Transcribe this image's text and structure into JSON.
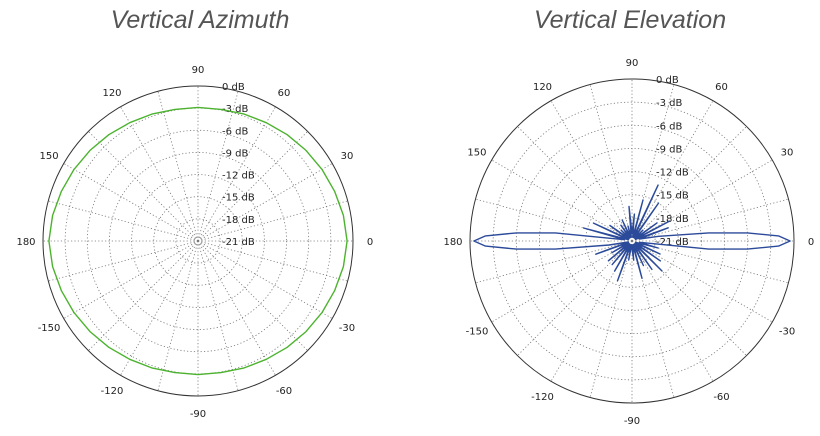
{
  "charts": [
    {
      "title": "Vertical Azimuth"
    },
    {
      "title": "Vertical Elevation"
    }
  ],
  "chart_data": [
    {
      "type": "polar",
      "title": "Vertical Azimuth",
      "angle_labels": [
        "0",
        "30",
        "60",
        "90",
        "120",
        "150",
        "180",
        "-150",
        "-120",
        "-90",
        "-60",
        "-30"
      ],
      "radial_labels": [
        "0 dB",
        "-3 dB",
        "-6 dB",
        "-9 dB",
        "-12 dB",
        "-15 dB",
        "-18 dB",
        "-21 dB"
      ],
      "rlim": [
        -21,
        0
      ],
      "grid": true,
      "series": [
        {
          "color": "#4cb32e",
          "theta": [
            0,
            10,
            20,
            30,
            40,
            50,
            60,
            70,
            80,
            90,
            100,
            110,
            120,
            130,
            140,
            150,
            160,
            170,
            180,
            190,
            200,
            210,
            220,
            230,
            240,
            250,
            260,
            270,
            280,
            290,
            300,
            310,
            320,
            330,
            340,
            350
          ],
          "r_db": [
            -0.8,
            -1.0,
            -1.3,
            -1.6,
            -1.9,
            -2.2,
            -2.5,
            -2.7,
            -2.9,
            -2.9,
            -2.9,
            -2.7,
            -2.5,
            -2.2,
            -1.9,
            -1.6,
            -1.3,
            -1.0,
            -0.8,
            -1.0,
            -1.3,
            -1.6,
            -1.9,
            -2.2,
            -2.5,
            -2.7,
            -2.9,
            -2.9,
            -2.9,
            -2.7,
            -2.5,
            -2.2,
            -1.9,
            -1.6,
            -1.3,
            -1.0
          ]
        }
      ]
    },
    {
      "type": "polar",
      "title": "Vertical Elevation",
      "angle_labels": [
        "0",
        "30",
        "60",
        "90",
        "120",
        "150",
        "180",
        "-150",
        "-120",
        "-90",
        "-60",
        "-30"
      ],
      "radial_labels": [
        "0 dB",
        "-3 dB",
        "-6 dB",
        "-9 dB",
        "-12 dB",
        "-15 dB",
        "-18 dB",
        "-21 dB"
      ],
      "rlim": [
        -21,
        0
      ],
      "grid": true,
      "series": [
        {
          "color": "#2b4a9a",
          "theta": [
            0,
            2,
            4,
            6,
            10,
            15,
            20,
            25,
            28,
            32,
            36,
            40,
            45,
            50,
            55,
            60,
            65,
            70,
            75,
            80,
            85,
            90,
            95,
            100,
            105,
            110,
            115,
            120,
            125,
            130,
            135,
            140,
            145,
            150,
            155,
            160,
            165,
            170,
            174,
            176,
            178,
            180,
            182,
            184,
            186,
            190,
            195,
            200,
            205,
            210,
            215,
            220,
            225,
            230,
            235,
            240,
            245,
            250,
            255,
            260,
            265,
            270,
            275,
            280,
            285,
            290,
            295,
            300,
            305,
            310,
            315,
            320,
            325,
            330,
            335,
            340,
            345,
            350,
            354,
            356,
            358
          ],
          "r_db": [
            -0.5,
            -2.0,
            -6.0,
            -11.0,
            -17.5,
            -20.0,
            -16.0,
            -20.5,
            -15.5,
            -20.5,
            -17.0,
            -20.5,
            -19.0,
            -20.5,
            -15.0,
            -20.5,
            -13.0,
            -20.5,
            -15.5,
            -20.5,
            -17.5,
            -20.0,
            -16.5,
            -20.5,
            -19.0,
            -20.5,
            -18.0,
            -20.5,
            -18.5,
            -20.5,
            -19.0,
            -20.5,
            -17.5,
            -20.5,
            -15.5,
            -20.5,
            -14.5,
            -20.0,
            -11.0,
            -6.0,
            -2.0,
            -0.5,
            -2.0,
            -6.0,
            -11.0,
            -18.0,
            -20.5,
            -16.0,
            -20.5,
            -18.0,
            -20.5,
            -17.0,
            -20.5,
            -17.0,
            -20.5,
            -16.5,
            -20.5,
            -15.5,
            -20.5,
            -18.5,
            -20.5,
            -20.0,
            -18.5,
            -20.5,
            -16.0,
            -20.5,
            -17.5,
            -20.5,
            -16.5,
            -20.5,
            -15.5,
            -20.5,
            -16.5,
            -20.5,
            -17.0,
            -20.5,
            -17.5,
            -20.0,
            -11.0,
            -6.0,
            -2.0
          ]
        }
      ]
    }
  ]
}
